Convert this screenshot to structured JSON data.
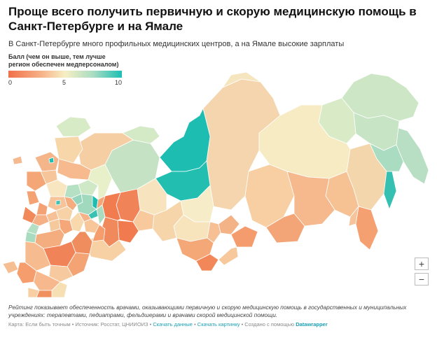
{
  "header": {
    "title": "Проще всего получить первичную и скорую медицинскую помощь в Санкт-Петербурге и на Ямале",
    "subtitle": "В Санкт-Петербурге много профильных медицинских центров, а на Ямале высокие зарплаты"
  },
  "legend": {
    "title_line1": "Балл (чем он выше, тем лучше",
    "title_line2": "регион обеспечен медперсоналом)",
    "min": "0",
    "mid": "5",
    "max": "10",
    "colors": [
      "#f0704a",
      "#f7b48a",
      "#f6efc4",
      "#a8dcc2",
      "#1bbfb3"
    ]
  },
  "zoom": {
    "in": "+",
    "out": "−"
  },
  "note": "Рейтинг показывает обеспеченность врачами, оказывающими первичную и скорую медицинскую помощь в государственных и муниципальных учреждениях: терапевтами, педиатрами, фельдшерами и врачами скорой медицинской помощи.",
  "footer": {
    "prefix": "Карта: Если быть точным • Источник: Росстат, ЦНИИОИЗ • ",
    "download_data": "Скачать данные",
    "sep1": " • ",
    "download_image": "Скачать картинку",
    "sep2": " • Создано с помощью ",
    "tool": "Datawrapper"
  }
}
